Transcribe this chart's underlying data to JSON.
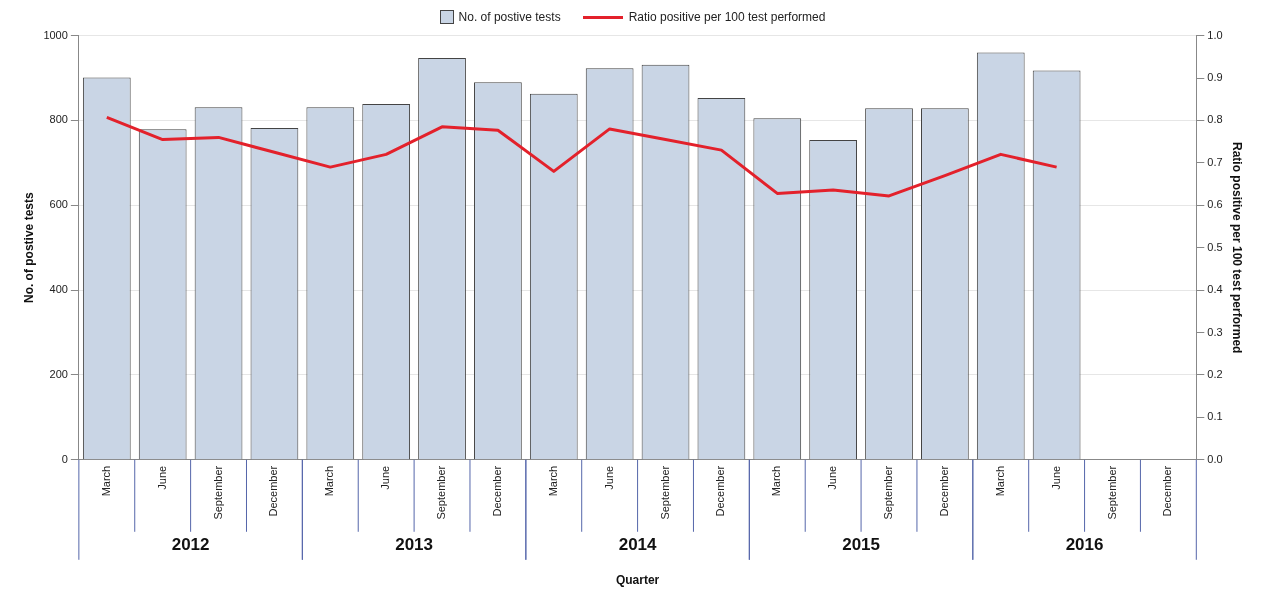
{
  "chart_data": {
    "type": "bar",
    "categories": [
      "March",
      "June",
      "September",
      "December",
      "March",
      "June",
      "September",
      "December",
      "March",
      "June",
      "September",
      "December",
      "March",
      "June",
      "September",
      "December",
      "March",
      "June",
      "September",
      "December"
    ],
    "xlabel": "Quarter",
    "ylabel": "No. of postive tests",
    "y2label": "Ratio positive per 100 test performed",
    "annotations": [
      "2012",
      "2013",
      "2014",
      "2015",
      "2016"
    ],
    "series": [
      {
        "name": "No. of postive tests",
        "color": "#c9d5e5",
        "values": [
          901,
          779,
          831,
          782,
          831,
          839,
          947,
          890,
          863,
          923,
          931,
          853,
          805,
          754,
          829,
          829,
          960,
          918,
          null,
          null
        ]
      },
      {
        "name": "Ratio positive per 100 test performed",
        "type": "line",
        "axis": "y2",
        "color": "#e3212b",
        "values": [
          0.807,
          0.755,
          0.76,
          0.725,
          0.69,
          0.72,
          0.785,
          0.777,
          0.68,
          0.78,
          0.755,
          0.73,
          0.628,
          0.636,
          0.622,
          0.67,
          0.72,
          0.69,
          null,
          null
        ]
      }
    ],
    "ylim": [
      0,
      1000
    ],
    "yticks": [
      0,
      200,
      400,
      600,
      800,
      1000
    ],
    "y2lim": [
      0,
      1
    ],
    "y2ticks": [
      {
        "value": 0,
        "label": "0.0"
      },
      {
        "value": 0.1,
        "label": "0.1"
      },
      {
        "value": 0.2,
        "label": "0.2"
      },
      {
        "value": 0.3,
        "label": "0.3"
      },
      {
        "value": 0.4,
        "label": "0.4"
      },
      {
        "value": 0.5,
        "label": "0.5"
      },
      {
        "value": 0.6,
        "label": "0.6"
      },
      {
        "value": 0.7,
        "label": "0.7"
      },
      {
        "value": 0.8,
        "label": "0.8"
      },
      {
        "value": 0.9,
        "label": "0.9"
      },
      {
        "value": 1,
        "label": "1.0"
      }
    ],
    "grid": "y",
    "legend": "top",
    "marker": "none",
    "line_style": "solid"
  }
}
